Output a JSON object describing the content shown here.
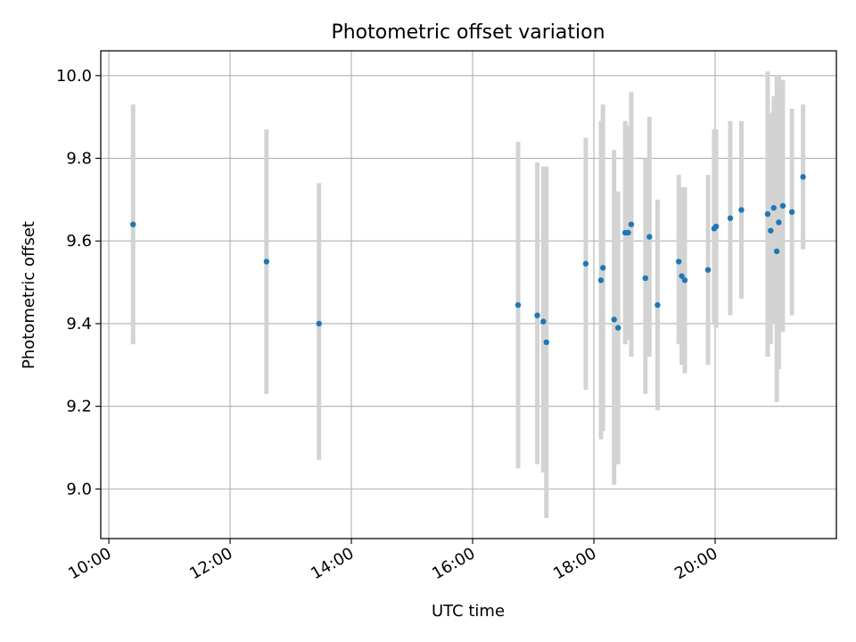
{
  "chart_data": {
    "type": "scatter",
    "title": "Photometric offset variation",
    "xlabel": "UTC time",
    "ylabel": "Photometric offset",
    "x_ticks": [
      "10:00",
      "12:00",
      "14:00",
      "16:00",
      "18:00",
      "20:00"
    ],
    "y_ticks": [
      "9.0",
      "9.2",
      "9.4",
      "9.6",
      "9.8",
      "10.0"
    ],
    "xlim": [
      "09:52",
      "22:00"
    ],
    "ylim": [
      8.88,
      10.06
    ],
    "grid": true,
    "legend": "none",
    "point_color": "#1f77b4",
    "errorbar_color": "#d3d3d3",
    "series": [
      {
        "points": [
          {
            "x": "10:24",
            "y": 9.64,
            "ylow": 9.35,
            "yhigh": 9.93
          },
          {
            "x": "12:36",
            "y": 9.55,
            "ylow": 9.23,
            "yhigh": 9.87
          },
          {
            "x": "13:28",
            "y": 9.4,
            "ylow": 9.07,
            "yhigh": 9.74
          },
          {
            "x": "16:45",
            "y": 9.445,
            "ylow": 9.05,
            "yhigh": 9.84
          },
          {
            "x": "17:04",
            "y": 9.42,
            "ylow": 9.06,
            "yhigh": 9.79
          },
          {
            "x": "17:10",
            "y": 9.405,
            "ylow": 9.04,
            "yhigh": 9.78
          },
          {
            "x": "17:13",
            "y": 9.355,
            "ylow": 8.93,
            "yhigh": 9.78
          },
          {
            "x": "17:52",
            "y": 9.545,
            "ylow": 9.24,
            "yhigh": 9.85
          },
          {
            "x": "18:07",
            "y": 9.505,
            "ylow": 9.12,
            "yhigh": 9.89
          },
          {
            "x": "18:09",
            "y": 9.535,
            "ylow": 9.14,
            "yhigh": 9.93
          },
          {
            "x": "18:20",
            "y": 9.41,
            "ylow": 9.01,
            "yhigh": 9.82
          },
          {
            "x": "18:24",
            "y": 9.39,
            "ylow": 9.06,
            "yhigh": 9.72
          },
          {
            "x": "18:31",
            "y": 9.62,
            "ylow": 9.35,
            "yhigh": 9.89
          },
          {
            "x": "18:34",
            "y": 9.62,
            "ylow": 9.36,
            "yhigh": 9.88
          },
          {
            "x": "18:37",
            "y": 9.64,
            "ylow": 9.32,
            "yhigh": 9.96
          },
          {
            "x": "18:51",
            "y": 9.51,
            "ylow": 9.23,
            "yhigh": 9.8
          },
          {
            "x": "18:55",
            "y": 9.61,
            "ylow": 9.32,
            "yhigh": 9.9
          },
          {
            "x": "19:03",
            "y": 9.445,
            "ylow": 9.19,
            "yhigh": 9.7
          },
          {
            "x": "19:24",
            "y": 9.55,
            "ylow": 9.35,
            "yhigh": 9.76
          },
          {
            "x": "19:27",
            "y": 9.515,
            "ylow": 9.3,
            "yhigh": 9.73
          },
          {
            "x": "19:30",
            "y": 9.505,
            "ylow": 9.28,
            "yhigh": 9.73
          },
          {
            "x": "19:53",
            "y": 9.53,
            "ylow": 9.3,
            "yhigh": 9.76
          },
          {
            "x": "19:59",
            "y": 9.63,
            "ylow": 9.4,
            "yhigh": 9.87
          },
          {
            "x": "20:01",
            "y": 9.635,
            "ylow": 9.39,
            "yhigh": 9.87
          },
          {
            "x": "20:15",
            "y": 9.655,
            "ylow": 9.42,
            "yhigh": 9.89
          },
          {
            "x": "20:26",
            "y": 9.675,
            "ylow": 9.46,
            "yhigh": 9.89
          },
          {
            "x": "20:52",
            "y": 9.665,
            "ylow": 9.32,
            "yhigh": 10.01
          },
          {
            "x": "20:55",
            "y": 9.625,
            "ylow": 9.35,
            "yhigh": 9.91
          },
          {
            "x": "20:58",
            "y": 9.68,
            "ylow": 9.4,
            "yhigh": 9.95
          },
          {
            "x": "21:01",
            "y": 9.575,
            "ylow": 9.21,
            "yhigh": 10.0
          },
          {
            "x": "21:03",
            "y": 9.645,
            "ylow": 9.29,
            "yhigh": 10.0
          },
          {
            "x": "21:07",
            "y": 9.685,
            "ylow": 9.38,
            "yhigh": 9.99
          },
          {
            "x": "21:16",
            "y": 9.67,
            "ylow": 9.42,
            "yhigh": 9.92
          },
          {
            "x": "21:27",
            "y": 9.755,
            "ylow": 9.58,
            "yhigh": 9.93
          }
        ]
      }
    ]
  }
}
